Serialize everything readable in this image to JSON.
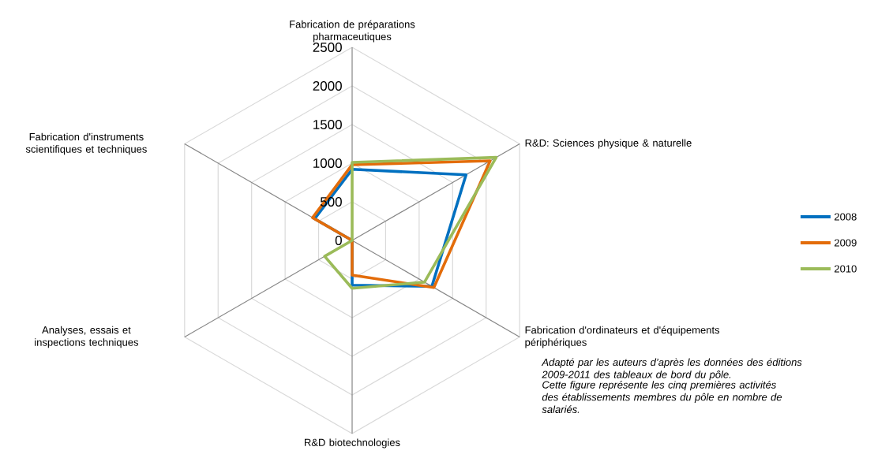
{
  "chart_data": {
    "type": "radar",
    "categories": [
      "Fabrication de préparations pharmaceutiques",
      "R&D: Sciences physique & naturelle",
      "Fabrication d'ordinateurs et d'équipements périphériques",
      "R&D biotechnologies",
      "Analyses, essais et inspections techniques",
      "Fabrication d'instruments scientifiques et techniques"
    ],
    "series": [
      {
        "name": "2008",
        "color": "#0070c0",
        "values": [
          920,
          1700,
          1190,
          580,
          0,
          560
        ]
      },
      {
        "name": "2009",
        "color": "#e36c0a",
        "values": [
          980,
          2060,
          1220,
          450,
          0,
          590
        ]
      },
      {
        "name": "2010",
        "color": "#9bbb59",
        "values": [
          1010,
          2150,
          1080,
          620,
          410,
          0
        ]
      }
    ],
    "ylim": [
      0,
      2500
    ],
    "yticks": [
      0,
      500,
      1000,
      1500,
      2000,
      2500
    ],
    "grid": true,
    "legend": "right",
    "annotations": [
      "Adapté par les auteurs d’après les données des éditions 2009-2011 des tableaux de bord du pôle.",
      "Cette figure représente les cinq premières activités des établissements membres du pôle en nombre de salariés."
    ]
  }
}
